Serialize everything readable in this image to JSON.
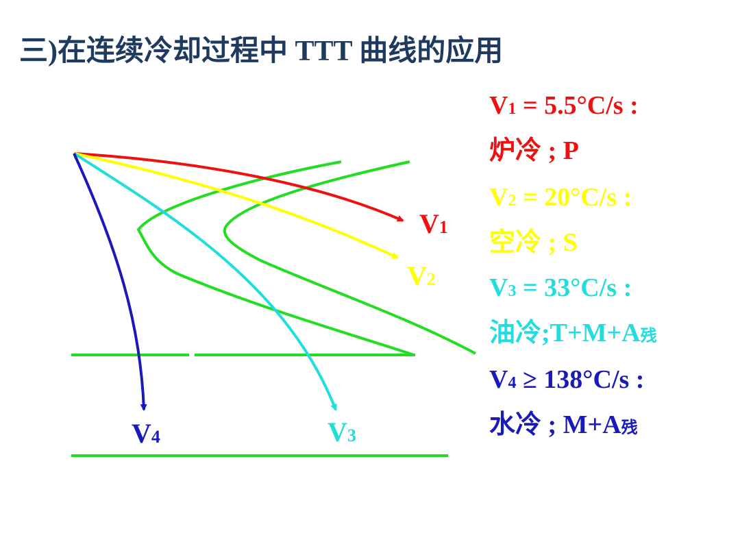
{
  "title": "三)在连续冷却过程中 TTT 曲线的应用",
  "colors": {
    "ttt_curve": "#22dd22",
    "v1": "#ee1111",
    "v2": "#ffff00",
    "v3": "#22dddd",
    "v4": "#1a1ab8"
  },
  "curve_labels": {
    "v1": {
      "main": "V",
      "sub": "1"
    },
    "v2": {
      "main": "V",
      "sub": "2"
    },
    "v3": {
      "main": "V",
      "sub": "3"
    },
    "v4": {
      "main": "V",
      "sub": "4"
    }
  },
  "legend": [
    {
      "id": "v1",
      "color": "#ee1111",
      "rate_main": "V",
      "rate_sub": "1",
      "rate_text": " = 5.5°C/s :",
      "method": "炉冷 ; P",
      "method_sub": ""
    },
    {
      "id": "v2",
      "color": "#ffff00",
      "rate_main": "V",
      "rate_sub": "2",
      "rate_text": " = 20°C/s :",
      "method": "空冷 ; S",
      "method_sub": ""
    },
    {
      "id": "v3",
      "color": "#22dddd",
      "rate_main": "V",
      "rate_sub": "3",
      "rate_text": " = 33°C/s :",
      "method": "油冷;T+M+A",
      "method_sub": "残"
    },
    {
      "id": "v4",
      "color": "#1a1ab8",
      "rate_main": "V",
      "rate_sub": "4",
      "rate_text": " ≥ 138°C/s :",
      "method": "水冷 ; M+A",
      "method_sub": "残"
    }
  ]
}
